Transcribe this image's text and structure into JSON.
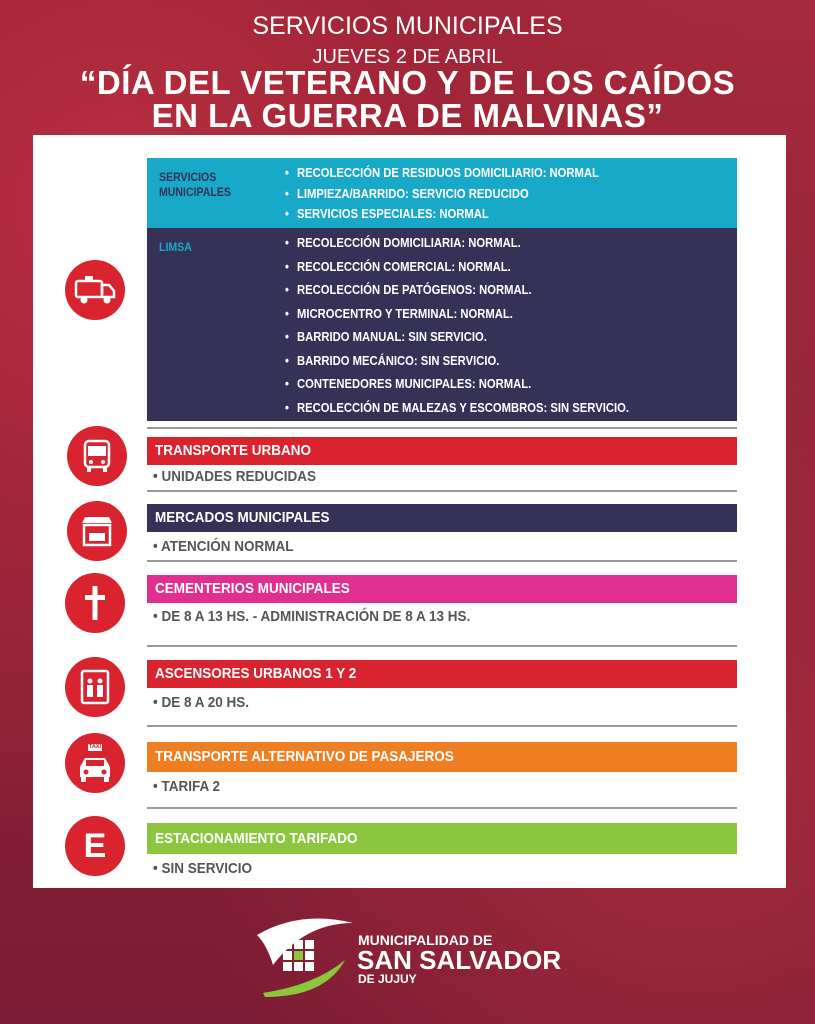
{
  "header": {
    "title": "SERVICIOS MUNICIPALES",
    "date": "JUEVES 2 DE ABRIL",
    "headline_1": "“DÍA DEL VETERANO Y DE LOS CAÍDOS",
    "headline_2": "EN LA GUERRA DE MALVINAS”"
  },
  "colors": {
    "background": "#8c1f37",
    "cyan": "#18a9c8",
    "navy": "#363257",
    "red": "#d9232e",
    "pink": "#e02f8f",
    "orange": "#ef7d22",
    "green": "#8cc63f"
  },
  "residuos": {
    "icon": "garbage-truck-icon",
    "municipales": {
      "label_1": "SERVICIOS",
      "label_2": "MUNICIPALES",
      "items": [
        "RECOLECCIÓN DE RESIDUOS DOMICILIARIO: NORMAL",
        "LIMPIEZA/BARRIDO: SERVICIO REDUCIDO",
        "SERVICIOS ESPECIALES: NORMAL"
      ]
    },
    "limsa": {
      "label": "LIMSA",
      "items": [
        "RECOLECCIÓN DOMICILIARIA: NORMAL.",
        "RECOLECCIÓN COMERCIAL: NORMAL.",
        "RECOLECCIÓN DE PATÓGENOS: NORMAL.",
        "MICROCENTRO Y TERMINAL: NORMAL.",
        "BARRIDO MANUAL: SIN SERVICIO.",
        "BARRIDO MECÁNICO: SIN SERVICIO.",
        "CONTENEDORES MUNICIPALES: NORMAL.",
        "RECOLECCIÓN DE MALEZAS Y ESCOMBROS: SIN SERVICIO."
      ]
    }
  },
  "sections": [
    {
      "title": "TRANSPORTE  URBANO",
      "detail": "• UNIDADES REDUCIDAS",
      "icon": "bus-icon"
    },
    {
      "title": "MERCADOS MUNICIPALES",
      "detail": "• ATENCIÓN NORMAL",
      "icon": "market-icon"
    },
    {
      "title": "CEMENTERIOS MUNICIPALES",
      "detail": "• DE 8 A 13 HS. - ADMINISTRACIÓN DE 8 A 13 HS.",
      "icon": "cross-icon"
    },
    {
      "title": "ASCENSORES URBANOS  1 Y 2",
      "detail": "• DE 8 A 20 HS.",
      "icon": "elevator-icon"
    },
    {
      "title": "TRANSPORTE ALTERNATIVO DE PASAJEROS",
      "detail": "• TARIFA 2",
      "icon": "taxi-icon",
      "icon_label": "TAXI"
    },
    {
      "title": "ESTACIONAMIENTO TARIFADO",
      "detail": "•  SIN SERVICIO",
      "icon": "parking-e-icon",
      "icon_label": "E"
    }
  ],
  "footer": {
    "line1": "MUNICIPALIDAD DE",
    "line2": "SAN SALVADOR",
    "line3": "DE JUJUY"
  }
}
